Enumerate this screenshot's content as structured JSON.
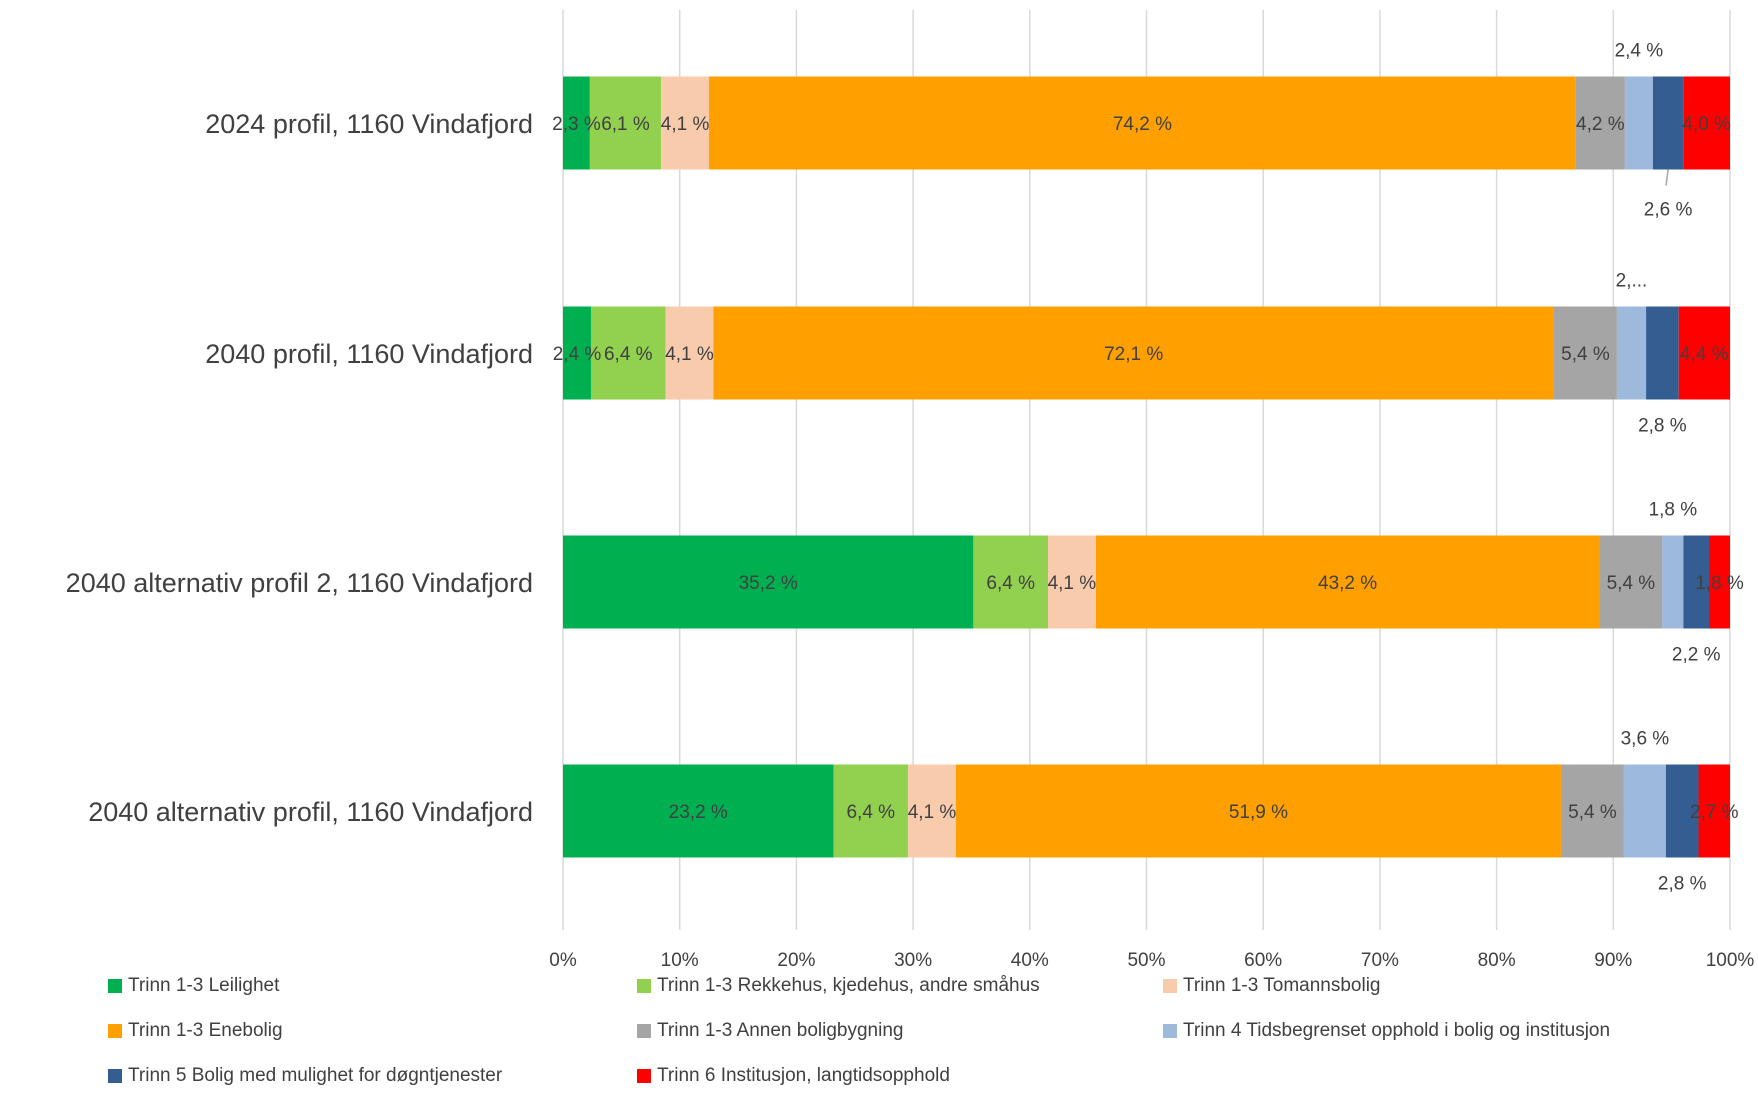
{
  "chart_data": {
    "type": "bar",
    "orientation": "horizontal",
    "stacked": "percent",
    "categories": [
      "2024 profil, 1160 Vindafjord",
      "2040 profil, 1160 Vindafjord",
      "2040 alternativ profil 2, 1160 Vindafjord",
      "2040 alternativ profil, 1160 Vindafjord"
    ],
    "xlim": [
      0,
      100
    ],
    "xticks": [
      "0%",
      "10%",
      "20%",
      "30%",
      "40%",
      "50%",
      "60%",
      "70%",
      "80%",
      "90%",
      "100%"
    ],
    "grid": "vertical",
    "legend_position": "bottom",
    "series": [
      {
        "name": "Trinn 1-3 Leilighet",
        "color": "#00B050",
        "values": [
          2.3,
          2.4,
          35.2,
          23.2
        ],
        "labels": [
          "2,3 %",
          "2,4 %",
          "35,2 %",
          "23,2 %"
        ]
      },
      {
        "name": "Trinn 1-3 Rekkehus, kjedehus, andre småhus",
        "color": "#92D050",
        "values": [
          6.1,
          6.4,
          6.4,
          6.4
        ],
        "labels": [
          "6,1 %",
          "6,4 %",
          "6,4 %",
          "6,4 %"
        ]
      },
      {
        "name": "Trinn 1-3 Tomannsbolig",
        "color": "#F8CBAD",
        "values": [
          4.1,
          4.1,
          4.1,
          4.1
        ],
        "labels": [
          "4,1 %",
          "4,1 %",
          "4,1 %",
          "4,1 %"
        ]
      },
      {
        "name": "Trinn 1-3 Enebolig",
        "color": "#FFA000",
        "values": [
          74.2,
          72.1,
          43.2,
          51.9
        ],
        "labels": [
          "74,2 %",
          "72,1 %",
          "43,2 %",
          "51,9 %"
        ]
      },
      {
        "name": "Trinn 1-3 Annen boligbygning",
        "color": "#A5A5A5",
        "values": [
          4.2,
          5.4,
          5.4,
          5.4
        ],
        "labels": [
          "4,2 %",
          "5,4 %",
          "5,4 %",
          "5,4 %"
        ]
      },
      {
        "name": "Trinn 4 Tidsbegrenset opphold i bolig og institusjon",
        "color": "#9DB9DC",
        "values": [
          2.4,
          2.5,
          1.8,
          3.6
        ],
        "labels": [
          "2,4 %",
          "2,...",
          "1,8 %",
          "3,6 %"
        ]
      },
      {
        "name": "Trinn 5 Bolig med mulighet for døgntjenester",
        "color": "#345D92",
        "values": [
          2.6,
          2.8,
          2.2,
          2.8
        ],
        "labels": [
          "2,6 %",
          "2,8 %",
          "2,2 %",
          "2,8 %"
        ]
      },
      {
        "name": "Trinn 6 Institusjon, langtidsopphold",
        "color": "#FF0000",
        "values": [
          4.0,
          4.4,
          1.8,
          2.7
        ],
        "labels": [
          "4,0 %",
          "4,4 %",
          "1,8 %",
          "2,7 %"
        ]
      }
    ]
  }
}
